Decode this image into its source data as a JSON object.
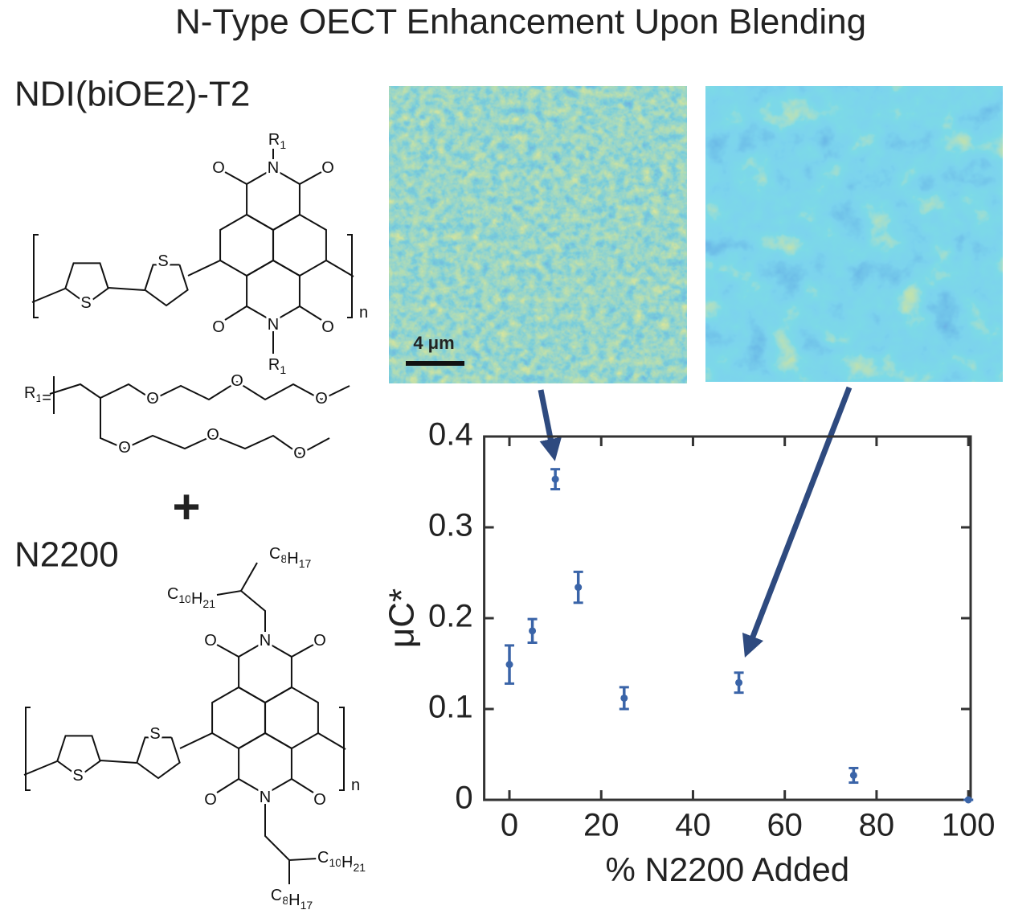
{
  "title": "N-Type OECT Enhancement Upon Blending",
  "structures": [
    {
      "name": "NDI(biOE2)-T2",
      "atoms": [
        "R1",
        "O",
        "N",
        "O",
        "S",
        "S",
        "O",
        "N",
        "O",
        "R1",
        "n",
        "R1=",
        "O",
        "O",
        "O",
        "O",
        "O",
        "O"
      ]
    },
    {
      "name": "N2200",
      "atoms": [
        "C8H17",
        "C10H21",
        "O",
        "N",
        "O",
        "S",
        "S",
        "O",
        "N",
        "O",
        "C10H21",
        "C8H17",
        "n"
      ]
    }
  ],
  "plus": "+",
  "scale_bar": "4 μm",
  "chart_data": {
    "type": "scatter",
    "x_label": "% N2200 Added",
    "y_label": "μC*",
    "x": [
      0,
      5,
      10,
      15,
      25,
      50,
      75,
      100
    ],
    "values": [
      0.149,
      0.186,
      0.353,
      0.234,
      0.112,
      0.129,
      0.027,
      0
    ],
    "errors": [
      0.021,
      0.013,
      0.011,
      0.017,
      0.012,
      0.011,
      0.008,
      0
    ],
    "color": "#3a64a8",
    "xlim": [
      -5.5,
      100.5
    ],
    "ylim": [
      0,
      0.4
    ],
    "xticks": [
      0,
      20,
      40,
      60,
      80,
      100
    ],
    "yticks": [
      0,
      0.1,
      0.2,
      0.3,
      0.4
    ]
  }
}
